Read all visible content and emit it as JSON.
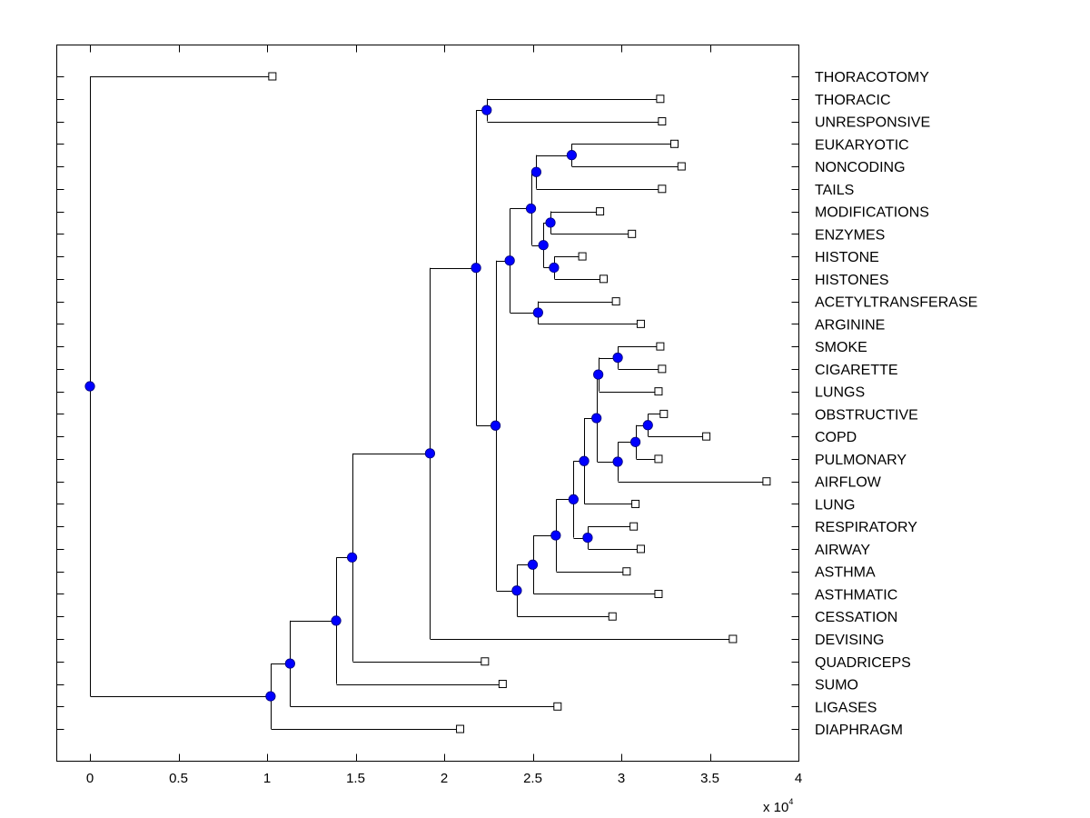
{
  "chart_data": {
    "type": "dendrogram",
    "title": "",
    "xlabel": "",
    "ylabel": "",
    "x_multiplier_label": "x 10",
    "x_multiplier_exponent": "4",
    "xlim": [
      -0.19,
      4.0
    ],
    "xticks": [
      0,
      0.5,
      1,
      1.5,
      2,
      2.5,
      3,
      3.5,
      4
    ],
    "xtick_labels": [
      "0",
      "0.5",
      "1",
      "1.5",
      "2",
      "2.5",
      "3",
      "3.5",
      "4"
    ],
    "units_note": "x values in units of 10^4",
    "grid": false,
    "colors": {
      "node_fill": "#0000ff",
      "line": "#000000",
      "leaf_fill": "#ffffff"
    },
    "leaves": [
      {
        "id": "THORACOTOMY",
        "label": "THORACOTOMY",
        "x": 1.03
      },
      {
        "id": "THORACIC",
        "label": "THORACIC",
        "x": 3.22
      },
      {
        "id": "UNRESPONSIVE",
        "label": "UNRESPONSIVE",
        "x": 3.23
      },
      {
        "id": "EUKARYOTIC",
        "label": "EUKARYOTIC",
        "x": 3.3
      },
      {
        "id": "NONCODING",
        "label": "NONCODING",
        "x": 3.34
      },
      {
        "id": "TAILS",
        "label": "TAILS",
        "x": 3.23
      },
      {
        "id": "MODIFICATIONS",
        "label": "MODIFICATIONS",
        "x": 2.88
      },
      {
        "id": "ENZYMES",
        "label": "ENZYMES",
        "x": 3.06
      },
      {
        "id": "HISTONE",
        "label": "HISTONE",
        "x": 2.78
      },
      {
        "id": "HISTONES",
        "label": "HISTONES",
        "x": 2.9
      },
      {
        "id": "ACETYLTRANSFERASE",
        "label": "ACETYLTRANSFERASE",
        "x": 2.97
      },
      {
        "id": "ARGININE",
        "label": "ARGININE",
        "x": 3.11
      },
      {
        "id": "SMOKE",
        "label": "SMOKE",
        "x": 3.22
      },
      {
        "id": "CIGARETTE",
        "label": "CIGARETTE",
        "x": 3.23
      },
      {
        "id": "LUNGS",
        "label": "LUNGS",
        "x": 3.21
      },
      {
        "id": "OBSTRUCTIVE",
        "label": "OBSTRUCTIVE",
        "x": 3.24
      },
      {
        "id": "COPD",
        "label": "COPD",
        "x": 3.48
      },
      {
        "id": "PULMONARY",
        "label": "PULMONARY",
        "x": 3.21
      },
      {
        "id": "AIRFLOW",
        "label": "AIRFLOW",
        "x": 3.82
      },
      {
        "id": "LUNG",
        "label": "LUNG",
        "x": 3.08
      },
      {
        "id": "RESPIRATORY",
        "label": "RESPIRATORY",
        "x": 3.07
      },
      {
        "id": "AIRWAY",
        "label": "AIRWAY",
        "x": 3.11
      },
      {
        "id": "ASTHMA",
        "label": "ASTHMA",
        "x": 3.03
      },
      {
        "id": "ASTHMATIC",
        "label": "ASTHMATIC",
        "x": 3.21
      },
      {
        "id": "CESSATION",
        "label": "CESSATION",
        "x": 2.95
      },
      {
        "id": "DEVISING",
        "label": "DEVISING",
        "x": 3.63
      },
      {
        "id": "QUADRICEPS",
        "label": "QUADRICEPS",
        "x": 2.23
      },
      {
        "id": "SUMO",
        "label": "SUMO",
        "x": 2.33
      },
      {
        "id": "LIGASES",
        "label": "LIGASES",
        "x": 2.64
      },
      {
        "id": "DIAPHRAGM",
        "label": "DIAPHRAGM",
        "x": 2.09
      }
    ],
    "nodes": [
      {
        "id": "root",
        "x": 0.0,
        "children": [
          "THORACOTOMY",
          "n1"
        ]
      },
      {
        "id": "n1",
        "x": 1.02,
        "children": [
          "n2",
          "DIAPHRAGM"
        ]
      },
      {
        "id": "n2",
        "x": 1.13,
        "children": [
          "n3",
          "LIGASES"
        ]
      },
      {
        "id": "n3",
        "x": 1.39,
        "children": [
          "n4",
          "SUMO"
        ]
      },
      {
        "id": "n4",
        "x": 1.48,
        "children": [
          "n5",
          "QUADRICEPS"
        ]
      },
      {
        "id": "n5",
        "x": 1.92,
        "children": [
          "n6",
          "DEVISING"
        ]
      },
      {
        "id": "n6",
        "x": 2.18,
        "children": [
          "n7",
          "n8"
        ]
      },
      {
        "id": "n7",
        "x": 2.24,
        "children": [
          "THORACIC",
          "UNRESPONSIVE"
        ]
      },
      {
        "id": "n8",
        "x": 2.29,
        "children": [
          "n9",
          "n17"
        ]
      },
      {
        "id": "n9",
        "x": 2.37,
        "children": [
          "n10",
          "n16"
        ]
      },
      {
        "id": "n10",
        "x": 2.49,
        "children": [
          "n11",
          "n13"
        ]
      },
      {
        "id": "n11",
        "x": 2.52,
        "children": [
          "n12",
          "TAILS"
        ]
      },
      {
        "id": "n12",
        "x": 2.72,
        "children": [
          "EUKARYOTIC",
          "NONCODING"
        ]
      },
      {
        "id": "n13",
        "x": 2.56,
        "children": [
          "n14",
          "n15"
        ]
      },
      {
        "id": "n14",
        "x": 2.6,
        "children": [
          "MODIFICATIONS",
          "ENZYMES"
        ]
      },
      {
        "id": "n15",
        "x": 2.62,
        "children": [
          "HISTONE",
          "HISTONES"
        ]
      },
      {
        "id": "n16",
        "x": 2.53,
        "children": [
          "ACETYLTRANSFERASE",
          "ARGININE"
        ]
      },
      {
        "id": "n17",
        "x": 2.41,
        "children": [
          "n18",
          "CESSATION"
        ]
      },
      {
        "id": "n18",
        "x": 2.5,
        "children": [
          "n19",
          "ASTHMATIC"
        ]
      },
      {
        "id": "n19",
        "x": 2.63,
        "children": [
          "n20",
          "ASTHMA"
        ]
      },
      {
        "id": "n20",
        "x": 2.73,
        "children": [
          "n21",
          "n28"
        ]
      },
      {
        "id": "n21",
        "x": 2.79,
        "children": [
          "n22",
          "LUNG"
        ]
      },
      {
        "id": "n22",
        "x": 2.86,
        "children": [
          "n23",
          "n25"
        ]
      },
      {
        "id": "n23",
        "x": 2.87,
        "children": [
          "n24",
          "LUNGS"
        ]
      },
      {
        "id": "n24",
        "x": 2.98,
        "children": [
          "SMOKE",
          "CIGARETTE"
        ]
      },
      {
        "id": "n25",
        "x": 2.98,
        "children": [
          "n26",
          "AIRFLOW"
        ]
      },
      {
        "id": "n26",
        "x": 3.08,
        "children": [
          "n27",
          "PULMONARY"
        ]
      },
      {
        "id": "n27",
        "x": 3.15,
        "children": [
          "OBSTRUCTIVE",
          "COPD"
        ]
      },
      {
        "id": "n28",
        "x": 2.81,
        "children": [
          "RESPIRATORY",
          "AIRWAY"
        ]
      }
    ]
  }
}
